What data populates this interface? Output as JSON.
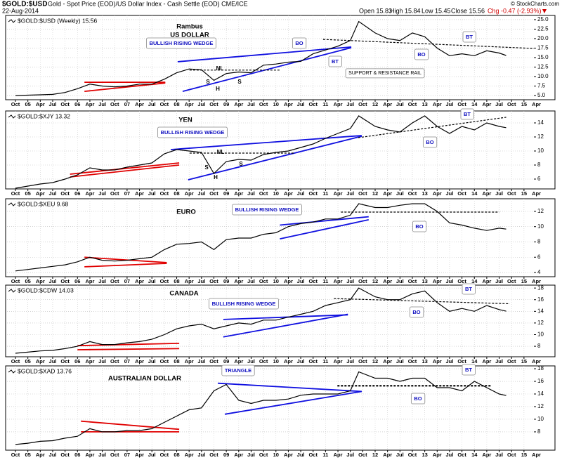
{
  "header": {
    "symbol": "$GOLD:$USD",
    "description": "Gold - Spot Price (EOD)/US Dollar Index - Cash Settle (EOD) CME/ICE",
    "date": "22-Aug-2014",
    "quote": [
      "Open 15.83",
      "High 15.84",
      "Low 15.45",
      "Close 15.56"
    ],
    "change": "Chg -0.47 (-2.93%)",
    "source": "© StockCharts.com"
  },
  "shared_x": {
    "x": [
      2004.75,
      2005,
      2005.25,
      2005.5,
      2005.75,
      2006,
      2006.25,
      2006.5,
      2006.75,
      2007,
      2007.25,
      2007.5,
      2007.75,
      2008,
      2008.25,
      2008.5,
      2008.75,
      2009,
      2009.25,
      2009.5,
      2009.75,
      2010,
      2010.25,
      2010.5,
      2010.75,
      2011,
      2011.25,
      2011.5,
      2011.67,
      2012,
      2012.25,
      2012.5,
      2012.75,
      2013,
      2013.25,
      2013.5,
      2013.75,
      2014,
      2014.25,
      2014.5,
      2014.64
    ],
    "xlim": [
      2004.58,
      2015.2
    ],
    "xticks": [
      {
        "value": 2004.75,
        "label": "Oct"
      },
      {
        "value": 2005,
        "label": "05"
      },
      {
        "value": 2005.25,
        "label": "Apr"
      },
      {
        "value": 2005.5,
        "label": "Jul"
      },
      {
        "value": 2005.75,
        "label": "Oct"
      },
      {
        "value": 2006,
        "label": "06"
      },
      {
        "value": 2006.25,
        "label": "Apr"
      },
      {
        "value": 2006.5,
        "label": "Jul"
      },
      {
        "value": 2006.75,
        "label": "Oct"
      },
      {
        "value": 2007,
        "label": "07"
      },
      {
        "value": 2007.25,
        "label": "Apr"
      },
      {
        "value": 2007.5,
        "label": "Jul"
      },
      {
        "value": 2007.75,
        "label": "Oct"
      },
      {
        "value": 2008,
        "label": "08"
      },
      {
        "value": 2008.25,
        "label": "Apr"
      },
      {
        "value": 2008.5,
        "label": "Jul"
      },
      {
        "value": 2008.75,
        "label": "Oct"
      },
      {
        "value": 2009,
        "label": "09"
      },
      {
        "value": 2009.25,
        "label": "Apr"
      },
      {
        "value": 2009.5,
        "label": "Jul"
      },
      {
        "value": 2009.75,
        "label": "Oct"
      },
      {
        "value": 2010,
        "label": "10"
      },
      {
        "value": 2010.25,
        "label": "Apr"
      },
      {
        "value": 2010.5,
        "label": "Jul"
      },
      {
        "value": 2010.75,
        "label": "Oct"
      },
      {
        "value": 2011,
        "label": "11"
      },
      {
        "value": 2011.25,
        "label": "Apr"
      },
      {
        "value": 2011.5,
        "label": "Jul"
      },
      {
        "value": 2011.75,
        "label": "Oct"
      },
      {
        "value": 2012,
        "label": "12"
      },
      {
        "value": 2012.25,
        "label": "Apr"
      },
      {
        "value": 2012.5,
        "label": "Jul"
      },
      {
        "value": 2012.75,
        "label": "Oct"
      },
      {
        "value": 2013,
        "label": "13"
      },
      {
        "value": 2013.25,
        "label": "Apr"
      },
      {
        "value": 2013.5,
        "label": "Jul"
      },
      {
        "value": 2013.75,
        "label": "Oct"
      },
      {
        "value": 2014,
        "label": "14"
      },
      {
        "value": 2014.25,
        "label": "Apr"
      },
      {
        "value": 2014.5,
        "label": "Jul"
      },
      {
        "value": 2014.75,
        "label": "Oct"
      },
      {
        "value": 2015,
        "label": "15"
      },
      {
        "value": 2015.25,
        "label": "Apr"
      }
    ]
  },
  "chart_data": [
    {
      "type": "line",
      "label": "$GOLD:$USD (Weekly) 15.56",
      "color": "#000000",
      "grid": true,
      "values": [
        5.0,
        5.1,
        5.2,
        5.3,
        5.8,
        6.8,
        8.0,
        7.5,
        7.3,
        7.5,
        8.0,
        8.0,
        9.3,
        11.0,
        12.0,
        11.8,
        9.0,
        10.8,
        11.2,
        11.0,
        13.0,
        13.3,
        13.8,
        14.0,
        16.0,
        17.0,
        18.0,
        19.5,
        24.5,
        21.5,
        20.0,
        19.5,
        21.5,
        20.5,
        17.5,
        15.5,
        16.0,
        15.5,
        16.8,
        16.2,
        15.56
      ],
      "ylim": [
        3.9,
        26.1
      ],
      "yticks": [
        {
          "value": 5,
          "label": "5.0"
        },
        7.5,
        {
          "value": 10,
          "label": "10.0"
        },
        12.5,
        {
          "value": 15,
          "label": "15.0"
        },
        17.5,
        {
          "value": 20,
          "label": "20.0"
        },
        22.5,
        {
          "value": 25,
          "label": "25.0"
        }
      ],
      "trendlines": [
        {
          "color": "#e00000",
          "dashed": false,
          "x": [
            2006.14,
            2007.77
          ],
          "y": [
            8.5,
            8.5
          ]
        },
        {
          "color": "#e00000",
          "dashed": false,
          "x": [
            2006.14,
            2007.77
          ],
          "y": [
            6.1,
            8.3
          ]
        },
        {
          "color": "#1010e0",
          "dashed": false,
          "x": [
            2008.02,
            2011.52
          ],
          "y": [
            13.9,
            17.8
          ]
        },
        {
          "color": "#1010e0",
          "dashed": false,
          "x": [
            2008.12,
            2011.52
          ],
          "y": [
            6.1,
            17.6
          ]
        },
        {
          "color": "#000000",
          "dashed": true,
          "x": [
            2008.26,
            2010.1
          ],
          "y": [
            11.7,
            11.7
          ]
        },
        {
          "color": "#000000",
          "dashed": true,
          "x": [
            2010.95,
            2015.2
          ],
          "y": [
            19.8,
            17.4
          ]
        }
      ],
      "annotations": [
        "Rambus",
        "US DOLLAR",
        "BULLISH RISING WEDGE",
        "BO",
        "BT",
        "BO",
        "BT",
        "SUPPORT & RESISTANCE RAIL",
        "S",
        "H",
        "NL",
        "S"
      ]
    },
    {
      "type": "line",
      "label": "$GOLD:$XJY 13.32",
      "color": "#000000",
      "grid": true,
      "values": [
        4.7,
        5.0,
        5.3,
        5.5,
        6.0,
        6.6,
        7.6,
        7.3,
        7.3,
        7.7,
        8.0,
        8.3,
        9.6,
        10.2,
        10.0,
        9.8,
        6.8,
        8.5,
        8.8,
        8.7,
        9.5,
        9.8,
        10.0,
        10.5,
        11.0,
        11.8,
        12.5,
        13.2,
        15.0,
        13.5,
        13.0,
        12.7,
        14.0,
        15.0,
        13.5,
        12.5,
        13.5,
        13.0,
        14.0,
        13.5,
        13.32
      ],
      "ylim": [
        4.6,
        15.7
      ],
      "yticks": [
        6,
        8,
        10,
        12,
        14
      ],
      "trendlines": [
        {
          "color": "#e00000",
          "dashed": false,
          "x": [
            2005.85,
            2008.05
          ],
          "y": [
            6.7,
            8.3
          ]
        },
        {
          "color": "#e00000",
          "dashed": false,
          "x": [
            2005.85,
            2008.05
          ],
          "y": [
            6.3,
            8.0
          ]
        },
        {
          "color": "#1010e0",
          "dashed": false,
          "x": [
            2007.88,
            2011.73
          ],
          "y": [
            10.2,
            12.2
          ]
        },
        {
          "color": "#1010e0",
          "dashed": false,
          "x": [
            2008.23,
            2011.73
          ],
          "y": [
            5.9,
            12.1
          ]
        },
        {
          "color": "#000000",
          "dashed": true,
          "x": [
            2008.26,
            2010.38
          ],
          "y": [
            9.7,
            9.7
          ]
        },
        {
          "color": "#000000",
          "dashed": true,
          "x": [
            2011.66,
            2014.64
          ],
          "y": [
            11.9,
            14.8
          ]
        }
      ],
      "annotations": [
        "YEN",
        "BULLISH RISING WEDGE",
        "BT",
        "BO",
        "S",
        "NL",
        "H",
        "S"
      ]
    },
    {
      "type": "line",
      "label": "$GOLD:$XEU 9.68",
      "color": "#000000",
      "grid": true,
      "values": [
        4.2,
        4.4,
        4.6,
        4.8,
        5.0,
        5.4,
        6.0,
        5.6,
        5.5,
        5.6,
        5.8,
        6.0,
        7.0,
        7.7,
        7.8,
        8.0,
        7.0,
        8.3,
        8.5,
        8.5,
        9.0,
        9.2,
        10.0,
        10.4,
        10.6,
        11.0,
        11.0,
        11.5,
        13.0,
        12.5,
        12.5,
        12.8,
        13.0,
        13.0,
        12.0,
        10.5,
        10.2,
        9.8,
        9.5,
        9.8,
        9.68
      ],
      "ylim": [
        3.45,
        13.65
      ],
      "yticks": [
        4,
        6,
        8,
        10,
        12
      ],
      "trendlines": [
        {
          "color": "#e00000",
          "dashed": false,
          "x": [
            2006.14,
            2007.8
          ],
          "y": [
            6.0,
            5.3
          ]
        },
        {
          "color": "#e00000",
          "dashed": false,
          "x": [
            2006.14,
            2007.8
          ],
          "y": [
            4.75,
            5.2
          ]
        },
        {
          "color": "#1010e0",
          "dashed": false,
          "x": [
            2010.08,
            2011.87
          ],
          "y": [
            10.2,
            11.3
          ]
        },
        {
          "color": "#1010e0",
          "dashed": false,
          "x": [
            2010.08,
            2011.87
          ],
          "y": [
            8.4,
            10.9
          ]
        },
        {
          "color": "#000000",
          "dashed": true,
          "x": [
            2011.31,
            2014.5
          ],
          "y": [
            11.9,
            11.9
          ]
        }
      ],
      "annotations": [
        "EURO",
        "BULLISH RISING WEDGE",
        "BO"
      ]
    },
    {
      "type": "line",
      "label": "$GOLD:$CDW 14.03",
      "color": "#000000",
      "grid": true,
      "values": [
        6.8,
        7.0,
        7.2,
        7.3,
        7.6,
        8.0,
        8.8,
        8.3,
        8.3,
        8.6,
        8.8,
        9.2,
        10.0,
        11.0,
        11.5,
        11.8,
        11.0,
        11.5,
        12.0,
        11.8,
        12.5,
        12.5,
        13.0,
        13.5,
        14.0,
        15.0,
        15.5,
        16.0,
        18.0,
        16.5,
        16.0,
        16.0,
        17.0,
        17.5,
        15.5,
        14.0,
        14.5,
        14.0,
        15.0,
        14.3,
        14.03
      ],
      "ylim": [
        6.2,
        18.5
      ],
      "yticks": [
        8,
        10,
        12,
        14,
        16,
        18
      ],
      "trendlines": [
        {
          "color": "#e00000",
          "dashed": false,
          "x": [
            2006.0,
            2008.05
          ],
          "y": [
            8.1,
            8.5
          ]
        },
        {
          "color": "#e00000",
          "dashed": false,
          "x": [
            2006.0,
            2008.05
          ],
          "y": [
            7.4,
            7.6
          ]
        },
        {
          "color": "#1010e0",
          "dashed": false,
          "x": [
            2008.94,
            2011.45
          ],
          "y": [
            12.6,
            13.4
          ]
        },
        {
          "color": "#1010e0",
          "dashed": false,
          "x": [
            2008.94,
            2011.45
          ],
          "y": [
            9.6,
            13.5
          ]
        },
        {
          "color": "#000000",
          "dashed": true,
          "x": [
            2011.17,
            2014.71
          ],
          "y": [
            16.2,
            15.3
          ]
        }
      ],
      "annotations": [
        "CANADA",
        "BULLISH RISING WEDGE",
        "BO",
        "BT"
      ]
    },
    {
      "type": "line",
      "label": "$GOLD:$XAD 13.76",
      "color": "#000000",
      "grid": true,
      "values": [
        6.0,
        6.2,
        6.5,
        6.6,
        7.0,
        7.3,
        8.5,
        8.0,
        8.0,
        8.2,
        8.2,
        8.5,
        9.5,
        10.5,
        11.5,
        11.8,
        14.5,
        15.5,
        13.0,
        12.5,
        13.0,
        13.0,
        13.2,
        13.8,
        14.0,
        14.0,
        14.0,
        14.5,
        17.5,
        16.5,
        16.5,
        16.0,
        16.5,
        16.5,
        15.0,
        15.0,
        14.5,
        16.0,
        15.0,
        14.0,
        13.76
      ],
      "ylim": [
        5.1,
        18.45
      ],
      "yticks": [
        8,
        10,
        12,
        14,
        16,
        18
      ],
      "trendlines": [
        {
          "color": "#e00000",
          "dashed": false,
          "x": [
            2006.07,
            2008.05
          ],
          "y": [
            9.7,
            8.4
          ]
        },
        {
          "color": "#e00000",
          "dashed": false,
          "x": [
            2006.07,
            2008.05
          ],
          "y": [
            8.0,
            8.0
          ]
        },
        {
          "color": "#1010e0",
          "dashed": false,
          "x": [
            2008.83,
            2011.73
          ],
          "y": [
            15.7,
            14.4
          ]
        },
        {
          "color": "#1010e0",
          "dashed": false,
          "x": [
            2008.97,
            2011.73
          ],
          "y": [
            10.8,
            14.4
          ]
        },
        {
          "color": "#000000",
          "dashed": true,
          "x": [
            2011.24,
            2014.35
          ],
          "y": [
            15.3,
            15.3
          ]
        }
      ],
      "annotations": [
        "AUSTRALIAN DOLLAR",
        "TRIANGLE",
        "BO",
        "BT"
      ]
    }
  ]
}
